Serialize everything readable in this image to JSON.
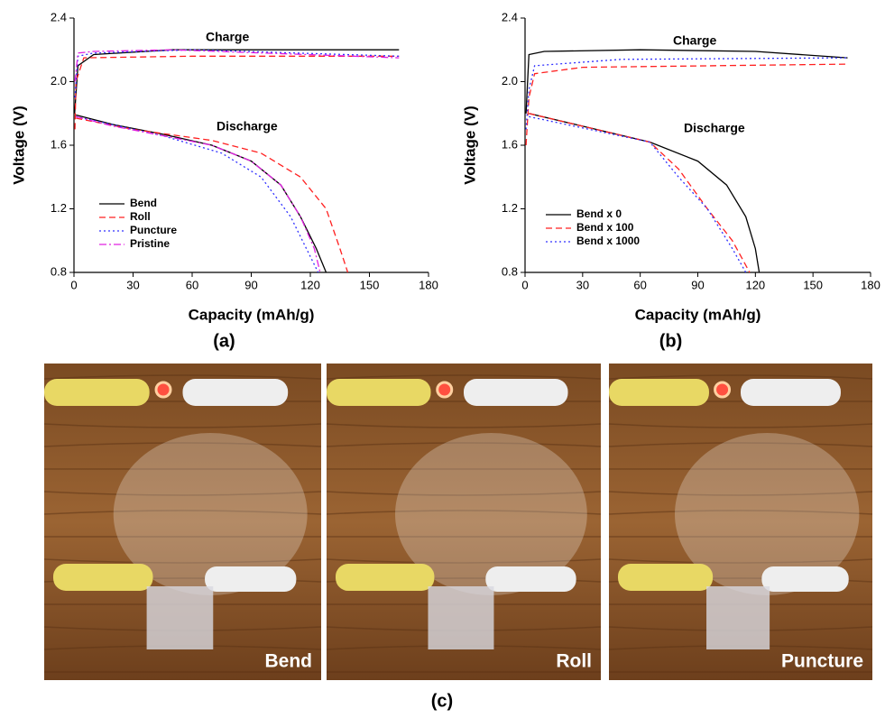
{
  "chart_data": [
    {
      "type": "line",
      "panel": "(a)",
      "xlabel": "Capacity (mAh/g)",
      "ylabel": "Voltage (V)",
      "xlim": [
        0,
        180
      ],
      "ylim": [
        0.8,
        2.4
      ],
      "xticks": [
        0,
        30,
        60,
        90,
        120,
        150,
        180
      ],
      "yticks": [
        0.8,
        1.2,
        1.6,
        {
          "value": 2.0,
          "label": "2.0"
        },
        2.4
      ],
      "annotations": [
        "Charge",
        "Discharge"
      ],
      "legend": "lower left",
      "series": [
        {
          "name": "Bend",
          "color": "#000000",
          "dash": "solid",
          "x": [
            0.3,
            2,
            10,
            50,
            100,
            165,
            null,
            1,
            20,
            45,
            70,
            90,
            105,
            115,
            123,
            128
          ],
          "values": [
            1.8,
            2.1,
            2.17,
            2.2,
            2.2,
            2.2,
            null,
            1.79,
            1.73,
            1.67,
            1.6,
            1.5,
            1.35,
            1.15,
            0.95,
            0.8
          ]
        },
        {
          "name": "Roll",
          "color": "#ff2020",
          "dash": "dashed",
          "x": [
            0.5,
            1,
            5,
            60,
            165,
            null,
            1,
            30,
            70,
            95,
            115,
            128,
            135,
            139
          ],
          "values": [
            1.7,
            2.0,
            2.15,
            2.16,
            2.16,
            null,
            1.77,
            1.7,
            1.63,
            1.55,
            1.4,
            1.2,
            0.95,
            0.8
          ]
        },
        {
          "name": "Puncture",
          "color": "#3030ff",
          "dash": "dotted",
          "x": [
            0.5,
            2,
            10,
            60,
            165,
            null,
            1,
            45,
            75,
            95,
            110,
            118,
            124
          ],
          "values": [
            1.9,
            2.16,
            2.18,
            2.2,
            2.16,
            null,
            1.78,
            1.66,
            1.55,
            1.4,
            1.15,
            0.95,
            0.8
          ]
        },
        {
          "name": "Pristine",
          "color": "#e020e0",
          "dash": "dashdot",
          "x": [
            0.5,
            2,
            10,
            50,
            165,
            null,
            1,
            20,
            45,
            70,
            90,
            105,
            115,
            122,
            125
          ],
          "values": [
            2.0,
            2.18,
            2.19,
            2.2,
            2.15,
            null,
            1.78,
            1.72,
            1.66,
            1.6,
            1.5,
            1.35,
            1.15,
            0.95,
            0.8
          ]
        }
      ]
    },
    {
      "type": "line",
      "panel": "(b)",
      "xlabel": "Capacity (mAh/g)",
      "ylabel": "Voltage (V)",
      "xlim": [
        0,
        180
      ],
      "ylim": [
        0.8,
        2.4
      ],
      "xticks": [
        0,
        30,
        60,
        90,
        120,
        150,
        180
      ],
      "yticks": [
        0.8,
        1.2,
        1.6,
        {
          "value": 2.0,
          "label": "2.0"
        },
        2.4
      ],
      "annotations": [
        "Charge",
        "Discharge"
      ],
      "legend": "lower left",
      "series": [
        {
          "name": "Bend x 0",
          "color": "#000000",
          "dash": "solid",
          "x": [
            0.5,
            2,
            10,
            60,
            120,
            168,
            null,
            2,
            30,
            65,
            90,
            105,
            115,
            120,
            122
          ],
          "values": [
            1.8,
            2.17,
            2.19,
            2.2,
            2.19,
            2.15,
            null,
            1.8,
            1.72,
            1.62,
            1.5,
            1.35,
            1.15,
            0.95,
            0.8
          ]
        },
        {
          "name": "Bend x 100",
          "color": "#ff2020",
          "dash": "dashed",
          "x": [
            0.5,
            2,
            5,
            30,
            168,
            null,
            2,
            65,
            80,
            95,
            108,
            117
          ],
          "values": [
            1.6,
            1.9,
            2.05,
            2.09,
            2.11,
            null,
            1.8,
            1.62,
            1.45,
            1.2,
            1.0,
            0.8
          ]
        },
        {
          "name": "Bend x 1000",
          "color": "#3030ff",
          "dash": "dotted",
          "x": [
            0.5,
            2,
            5,
            50,
            168,
            null,
            2,
            65,
            80,
            95,
            108,
            115
          ],
          "values": [
            1.7,
            1.95,
            2.1,
            2.14,
            2.15,
            null,
            1.78,
            1.62,
            1.4,
            1.2,
            0.95,
            0.8
          ]
        }
      ]
    }
  ],
  "photos": {
    "panel": "(c)",
    "labels": [
      "Bend",
      "Roll",
      "Puncture"
    ]
  }
}
